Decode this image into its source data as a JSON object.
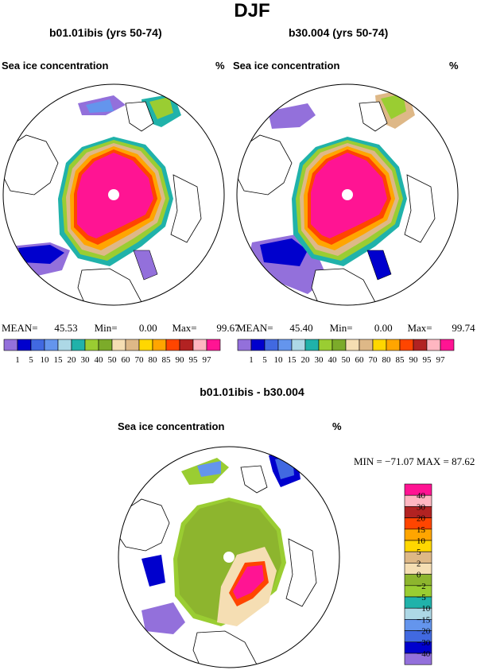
{
  "page": {
    "title": "DJF",
    "diff_title": "b01.01ibis - b30.004"
  },
  "panels": [
    {
      "case": "b01.01ibis (yrs 50-74)",
      "variable": "Sea ice concentration",
      "units": "%",
      "stats": {
        "mean_label": "MEAN=",
        "mean": "45.53",
        "min_label": "Min=",
        "min": "0.00",
        "max_label": "Max=",
        "max": "99.67"
      }
    },
    {
      "case": "b30.004 (yrs 50-74)",
      "variable": "Sea ice concentration",
      "units": "%",
      "stats": {
        "mean_label": "MEAN=",
        "mean": "45.40",
        "min_label": "Min=",
        "min": "0.00",
        "max_label": "Max=",
        "max": "99.74"
      }
    }
  ],
  "diff_panel": {
    "variable": "Sea ice concentration",
    "units": "%",
    "min_label": "MIN =",
    "min": "−71.07",
    "max_label": "MAX =",
    "max": "87.62"
  },
  "colorbar_abs": {
    "levels": [
      "1",
      "5",
      "10",
      "15",
      "20",
      "30",
      "40",
      "50",
      "60",
      "70",
      "80",
      "85",
      "90",
      "95",
      "97"
    ],
    "colors": [
      "#9370db",
      "#0000cd",
      "#4169e1",
      "#6495ed",
      "#add8e6",
      "#20b2aa",
      "#9acd32",
      "#7cab2a",
      "#f5deb3",
      "#deb887",
      "#ffd700",
      "#ffa500",
      "#ff4500",
      "#b22222",
      "#ffb6c1",
      "#ff1493"
    ]
  },
  "colorbar_diff": {
    "levels": [
      "40",
      "30",
      "20",
      "15",
      "10",
      "5",
      "2",
      "0",
      "−2",
      "−5",
      "−10",
      "−15",
      "−20",
      "−30",
      "−40"
    ],
    "colors": [
      "#ff1493",
      "#ffb6c1",
      "#b22222",
      "#ff4500",
      "#ffa500",
      "#ffd700",
      "#deb887",
      "#f5deb3",
      "#8db52e",
      "#9acd32",
      "#20b2aa",
      "#add8e6",
      "#6495ed",
      "#4169e1",
      "#0000cd",
      "#9370db"
    ]
  }
}
